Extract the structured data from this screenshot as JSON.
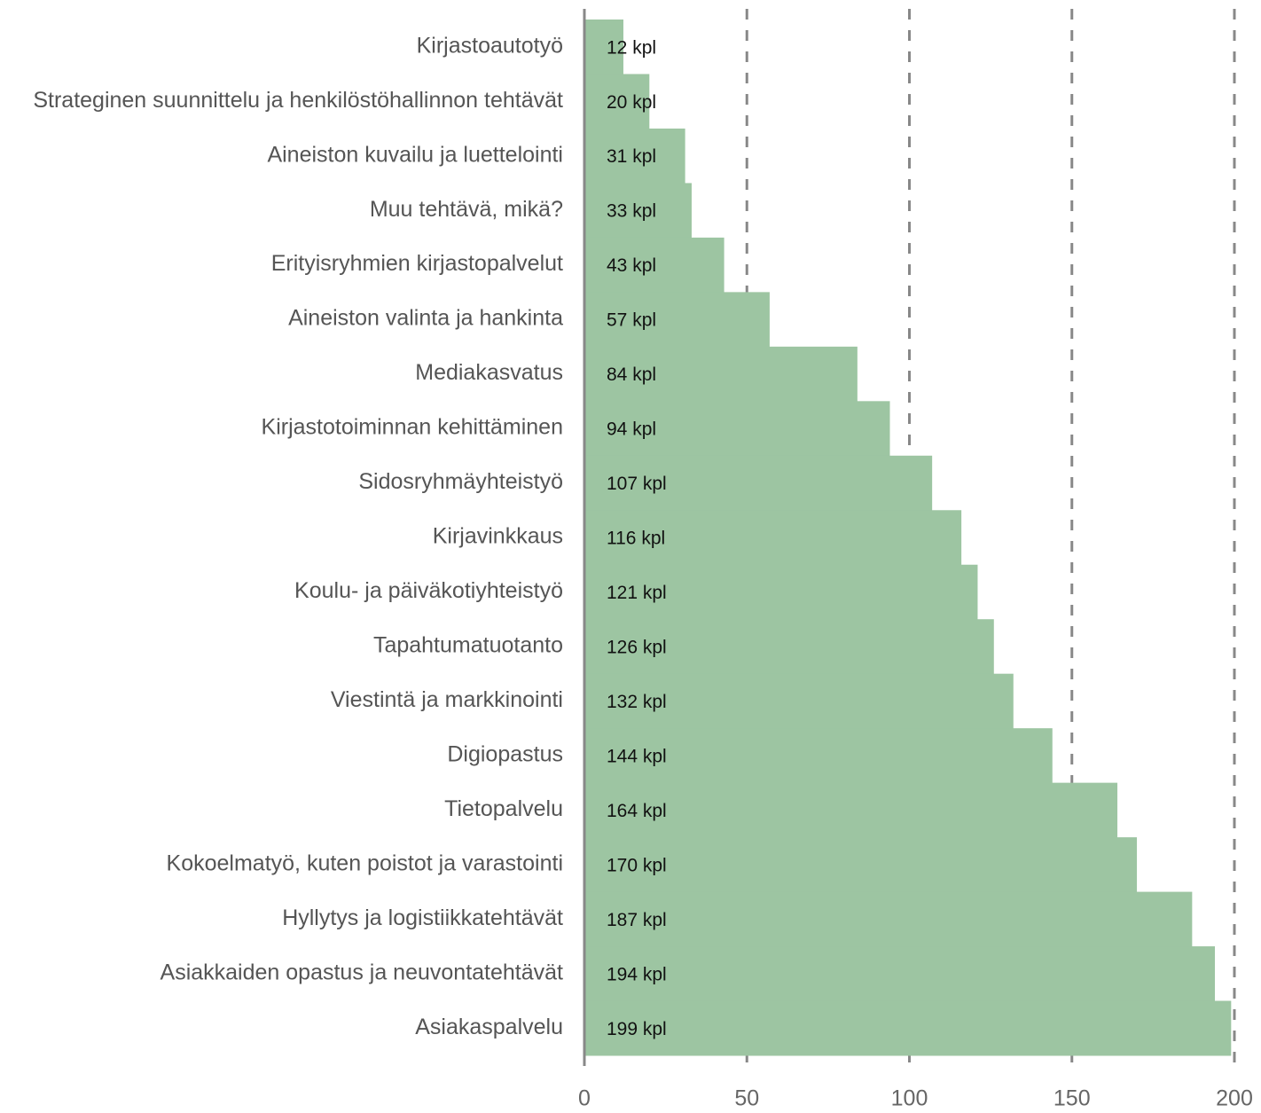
{
  "chart_data": {
    "type": "barh",
    "categories": [
      "Kirjastoautotyö",
      "Strateginen suunnittelu ja henkilöstöhallinnon tehtävät",
      "Aineiston kuvailu ja luettelointi",
      "Muu tehtävä, mikä?",
      "Erityisryhmien kirjastopalvelut",
      "Aineiston valinta ja hankinta",
      "Mediakasvatus",
      "Kirjastotoiminnan kehittäminen",
      "Sidosryhmäyhteistyö",
      "Kirjavinkkaus",
      "Koulu- ja päiväkotiyhteistyö",
      "Tapahtumatuotanto",
      "Viestintä ja markkinointi",
      "Digiopastus",
      "Tietopalvelu",
      "Kokoelmatyö, kuten poistot ja varastointi",
      "Hyllytys ja logistiikkatehtävät",
      "Asiakkaiden opastus ja neuvontatehtävät",
      "Asiakaspalvelu"
    ],
    "values": [
      12,
      20,
      31,
      33,
      43,
      57,
      84,
      94,
      107,
      116,
      121,
      126,
      132,
      144,
      164,
      170,
      187,
      194,
      199
    ],
    "value_labels": [
      "12 kpl",
      "20 kpl",
      "31 kpl",
      "33 kpl",
      "43 kpl",
      "57 kpl",
      "84 kpl",
      "94 kpl",
      "107 kpl",
      "116 kpl",
      "121 kpl",
      "126 kpl",
      "132 kpl",
      "144 kpl",
      "164 kpl",
      "170 kpl",
      "187 kpl",
      "194 kpl",
      "199 kpl"
    ],
    "color": "#9dc5a2",
    "xlim": [
      0,
      200
    ],
    "xticks": [
      0,
      50,
      100,
      150,
      200
    ],
    "grid": true
  }
}
